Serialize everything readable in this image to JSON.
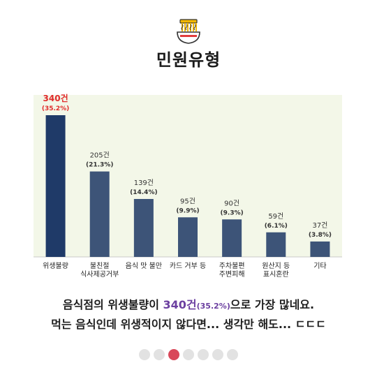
{
  "header": {
    "title": "민원유형",
    "icon": "noodle-bowl-icon"
  },
  "chart_data": {
    "type": "bar",
    "categories": [
      "위생불량",
      "불친절\n식사제공거부",
      "음식 맛 불만",
      "카드 거부 등",
      "주차불편\n주변피해",
      "원산지 등\n표시혼란",
      "기타"
    ],
    "values": [
      340,
      205,
      139,
      95,
      90,
      59,
      37
    ],
    "value_labels": [
      "340건",
      "205건",
      "139건",
      "95건",
      "90건",
      "59건",
      "37건"
    ],
    "percent_labels": [
      "(35.2%)",
      "(21.3%)",
      "(14.4%)",
      "(9.9%)",
      "(9.3%)",
      "(6.1%)",
      "(3.8%)"
    ],
    "ylim": [
      0,
      340
    ],
    "colors": {
      "highlight": "#1f3a68",
      "bar": "#3d5478",
      "plot_bg": "#f3f7e8",
      "label_highlight": "#e02b2b"
    }
  },
  "caption": {
    "line1_pre": "음식점의 위생불량이 ",
    "line1_value": "340건",
    "line1_percent": "(35.2%)",
    "line1_post": "으로 가장 많네요.",
    "line2": "먹는 음식인데 위생적이지 않다면... 생각만 해도... ㄷㄷㄷ"
  },
  "pagination": {
    "total": 7,
    "active": 3
  }
}
